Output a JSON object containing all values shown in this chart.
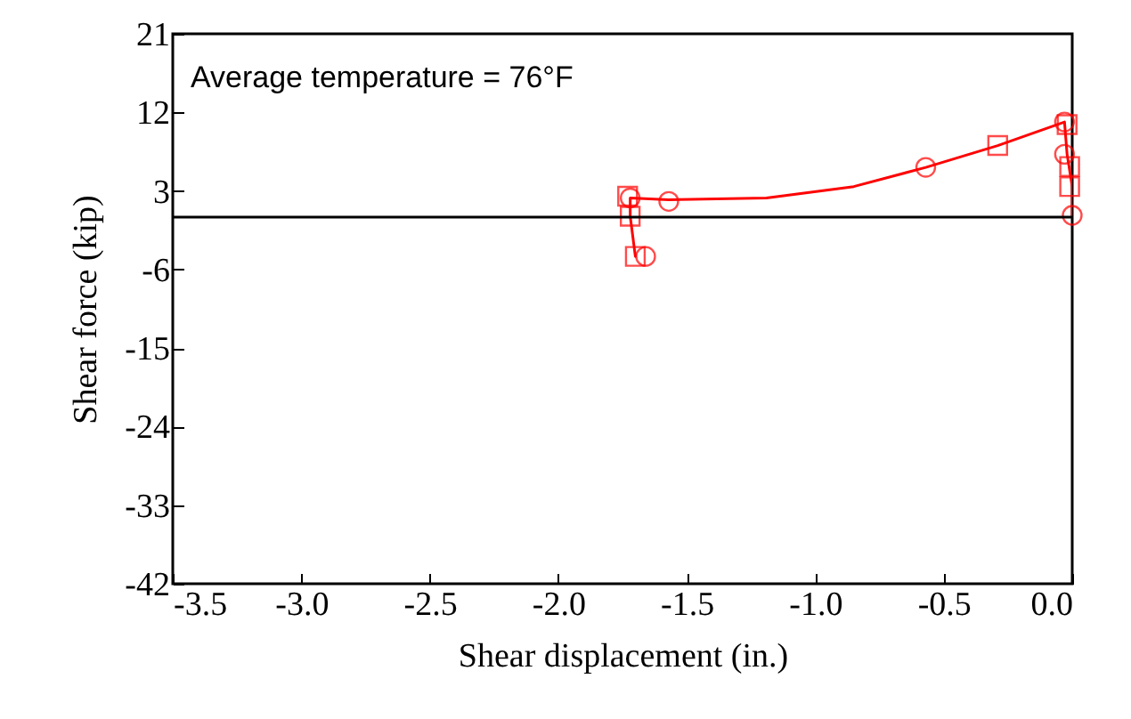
{
  "chart_data": {
    "type": "line",
    "xlabel": "Shear displacement (in.)",
    "ylabel": "Shear force (kip)",
    "annotations": [
      "Average temperature = 76°F"
    ],
    "xlim": [
      -3.5,
      0
    ],
    "xticks": [
      -3.5,
      {
        "value": -3,
        "label": "-3.0"
      },
      -2.5,
      {
        "value": -2,
        "label": "-2.0"
      },
      -1.5,
      {
        "value": -1,
        "label": "-1.0"
      },
      -0.5,
      {
        "value": 0,
        "label": "0.0"
      }
    ],
    "ylim": [
      -42,
      21
    ],
    "yticks": [
      -42,
      -33,
      -24,
      -15,
      -6,
      3,
      12,
      21
    ],
    "grid": false,
    "ref_lines": [
      {
        "axis": "y",
        "value": 0,
        "color": "#000000"
      }
    ],
    "series": [
      {
        "color": "#ff0000",
        "marker": "none",
        "x": [
          -1.7,
          -1.72,
          -1.72,
          -1.57,
          -1.19,
          -0.85,
          -0.57,
          -0.29,
          -0.03,
          -0.02,
          0.0,
          0.0
        ],
        "values": [
          -4.5,
          0.1,
          2.2,
          2.0,
          2.2,
          3.5,
          5.7,
          8.2,
          10.9,
          7.2,
          3.5,
          0.2
        ]
      },
      {
        "type": "scatter",
        "color": "#ff0000",
        "marker": "circle",
        "x": [
          -1.72,
          -1.57,
          -0.57,
          -0.03,
          -0.03,
          0.0,
          -1.66
        ],
        "values": [
          2.2,
          1.8,
          5.7,
          10.9,
          7.2,
          0.2,
          -4.5
        ]
      },
      {
        "type": "scatter",
        "color": "#ff0000",
        "marker": "square",
        "x": [
          -1.73,
          -1.72,
          -1.7,
          -0.29,
          -0.02,
          -0.01,
          -0.01
        ],
        "values": [
          2.4,
          0.1,
          -4.5,
          8.2,
          10.6,
          5.8,
          3.5
        ]
      }
    ]
  }
}
